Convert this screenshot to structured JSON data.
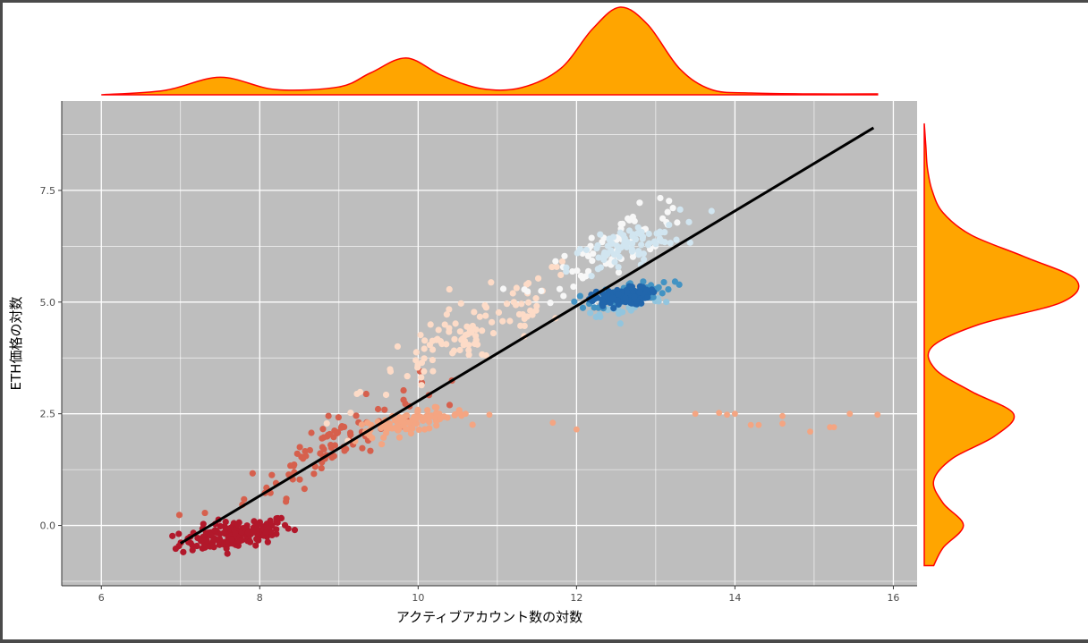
{
  "chart_data": {
    "type": "scatter",
    "title": "",
    "xlabel": "アクティブアカウント数の対数",
    "ylabel": "ETH価格の対数",
    "xlim": [
      5.5,
      16.3
    ],
    "ylim": [
      -1.35,
      9.5
    ],
    "x_ticks": [
      6,
      8,
      10,
      12,
      14,
      16
    ],
    "y_ticks": [
      0.0,
      2.5,
      5.0,
      7.5
    ],
    "x_tick_labels": [
      "6",
      "8",
      "10",
      "12",
      "14",
      "16"
    ],
    "y_tick_labels": [
      "0.0",
      "2.5",
      "5.0",
      "7.5"
    ],
    "grid": true,
    "panel_background": "#bebebe",
    "legend": "none",
    "regression_line": {
      "x": [
        7.0,
        15.75
      ],
      "y": [
        -0.4,
        8.9
      ],
      "color": "#000000"
    },
    "marginal_x_density": {
      "fill": "#ffa500",
      "stroke": "#ff0000",
      "x": [
        6.0,
        6.8,
        7.5,
        8.2,
        9.0,
        9.4,
        9.85,
        10.3,
        10.8,
        11.3,
        11.8,
        12.2,
        12.55,
        12.9,
        13.3,
        13.7,
        14.2,
        15.0,
        15.8
      ],
      "density": [
        0.0,
        0.05,
        0.2,
        0.06,
        0.09,
        0.25,
        0.42,
        0.22,
        0.07,
        0.08,
        0.3,
        0.75,
        1.0,
        0.8,
        0.3,
        0.06,
        0.02,
        0.01,
        0.01
      ]
    },
    "marginal_y_density": {
      "fill": "#ffa500",
      "stroke": "#ff0000",
      "y": [
        -0.9,
        -0.5,
        0.0,
        0.5,
        1.0,
        1.5,
        2.0,
        2.5,
        3.0,
        3.5,
        4.0,
        4.5,
        5.0,
        5.5,
        6.0,
        6.5,
        7.0,
        7.5,
        8.0,
        8.5,
        9.0
      ],
      "density": [
        0.06,
        0.12,
        0.25,
        0.12,
        0.06,
        0.18,
        0.45,
        0.57,
        0.3,
        0.07,
        0.05,
        0.35,
        0.88,
        0.97,
        0.65,
        0.3,
        0.12,
        0.05,
        0.02,
        0.01,
        0.0
      ]
    },
    "series": [
      {
        "color": "#b2182b",
        "cx": 7.7,
        "cy": -0.2,
        "sx": 0.35,
        "sy": 0.28,
        "n": 170,
        "trend": 0.25
      },
      {
        "color": "#d6604d",
        "cx": 8.9,
        "cy": 1.8,
        "sx": 0.55,
        "sy": 0.55,
        "n": 90,
        "trend": 1.0
      },
      {
        "color": "#f4a582",
        "cx": 9.9,
        "cy": 2.3,
        "sx": 0.35,
        "sy": 0.2,
        "n": 90,
        "trend": 0.3
      },
      {
        "color": "#fddbc7",
        "cx": 10.7,
        "cy": 4.3,
        "sx": 0.7,
        "sy": 0.7,
        "n": 110,
        "trend": 0.9
      },
      {
        "color": "#f7f7f7",
        "cx": 12.5,
        "cy": 6.3,
        "sx": 0.5,
        "sy": 0.5,
        "n": 70,
        "trend": 0.9
      },
      {
        "color": "#d1e5f0",
        "cx": 12.6,
        "cy": 6.2,
        "sx": 0.35,
        "sy": 0.4,
        "n": 80,
        "trend": 0.6
      },
      {
        "color": "#92c5de",
        "cx": 12.6,
        "cy": 5.0,
        "sx": 0.25,
        "sy": 0.3,
        "n": 60,
        "trend": 0.2
      },
      {
        "color": "#4393c3",
        "cx": 12.7,
        "cy": 5.2,
        "sx": 0.25,
        "sy": 0.22,
        "n": 60,
        "trend": 0.3
      },
      {
        "color": "#2166ac",
        "cx": 12.55,
        "cy": 5.1,
        "sx": 0.18,
        "sy": 0.18,
        "n": 130,
        "trend": 0.2
      }
    ],
    "outliers": {
      "color": "#f4a582",
      "points": [
        [
          10.6,
          2.5
        ],
        [
          10.9,
          2.48
        ],
        [
          11.7,
          2.3
        ],
        [
          12.0,
          2.15
        ],
        [
          13.5,
          2.5
        ],
        [
          13.8,
          2.52
        ],
        [
          13.9,
          2.48
        ],
        [
          14.0,
          2.5
        ],
        [
          14.2,
          2.25
        ],
        [
          14.3,
          2.25
        ],
        [
          14.6,
          2.45
        ],
        [
          14.6,
          2.28
        ],
        [
          14.95,
          2.1
        ],
        [
          15.2,
          2.2
        ],
        [
          15.25,
          2.2
        ],
        [
          15.45,
          2.5
        ],
        [
          15.8,
          2.48
        ]
      ]
    }
  }
}
